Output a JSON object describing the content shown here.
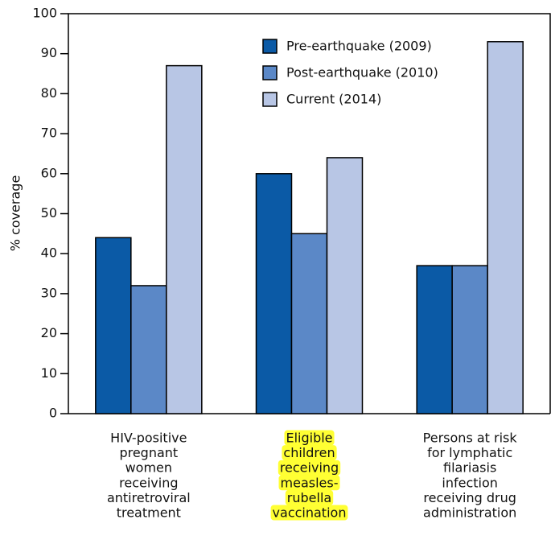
{
  "chart_data": {
    "type": "bar",
    "y_label": "% coverage",
    "categories": [
      [
        "HIV-positive",
        "pregnant",
        "women",
        "receiving",
        "antiretroviral",
        "treatment"
      ],
      [
        "Eligible",
        "children",
        "receiving",
        "measles-",
        "rubella",
        "vaccination"
      ],
      [
        "Persons at risk",
        "for lymphatic",
        "filariasis",
        "infection",
        "receiving drug",
        "administration"
      ]
    ],
    "series": [
      {
        "name": "Pre-earthquake (2009)",
        "color": "#0b5aa6",
        "values": [
          44,
          60,
          37
        ]
      },
      {
        "name": "Post-earthquake (2010)",
        "color": "#5b88c7",
        "values": [
          32,
          45,
          37
        ]
      },
      {
        "name": "Current (2014)",
        "color": "#b8c6e5",
        "values": [
          87,
          64,
          93
        ]
      }
    ],
    "ylim": [
      0,
      100
    ],
    "yticks": [
      0,
      10,
      20,
      30,
      40,
      50,
      60,
      70,
      80,
      90,
      100
    ],
    "legend": "top",
    "highlight": {
      "category": 1,
      "color": "#ffff33"
    }
  }
}
